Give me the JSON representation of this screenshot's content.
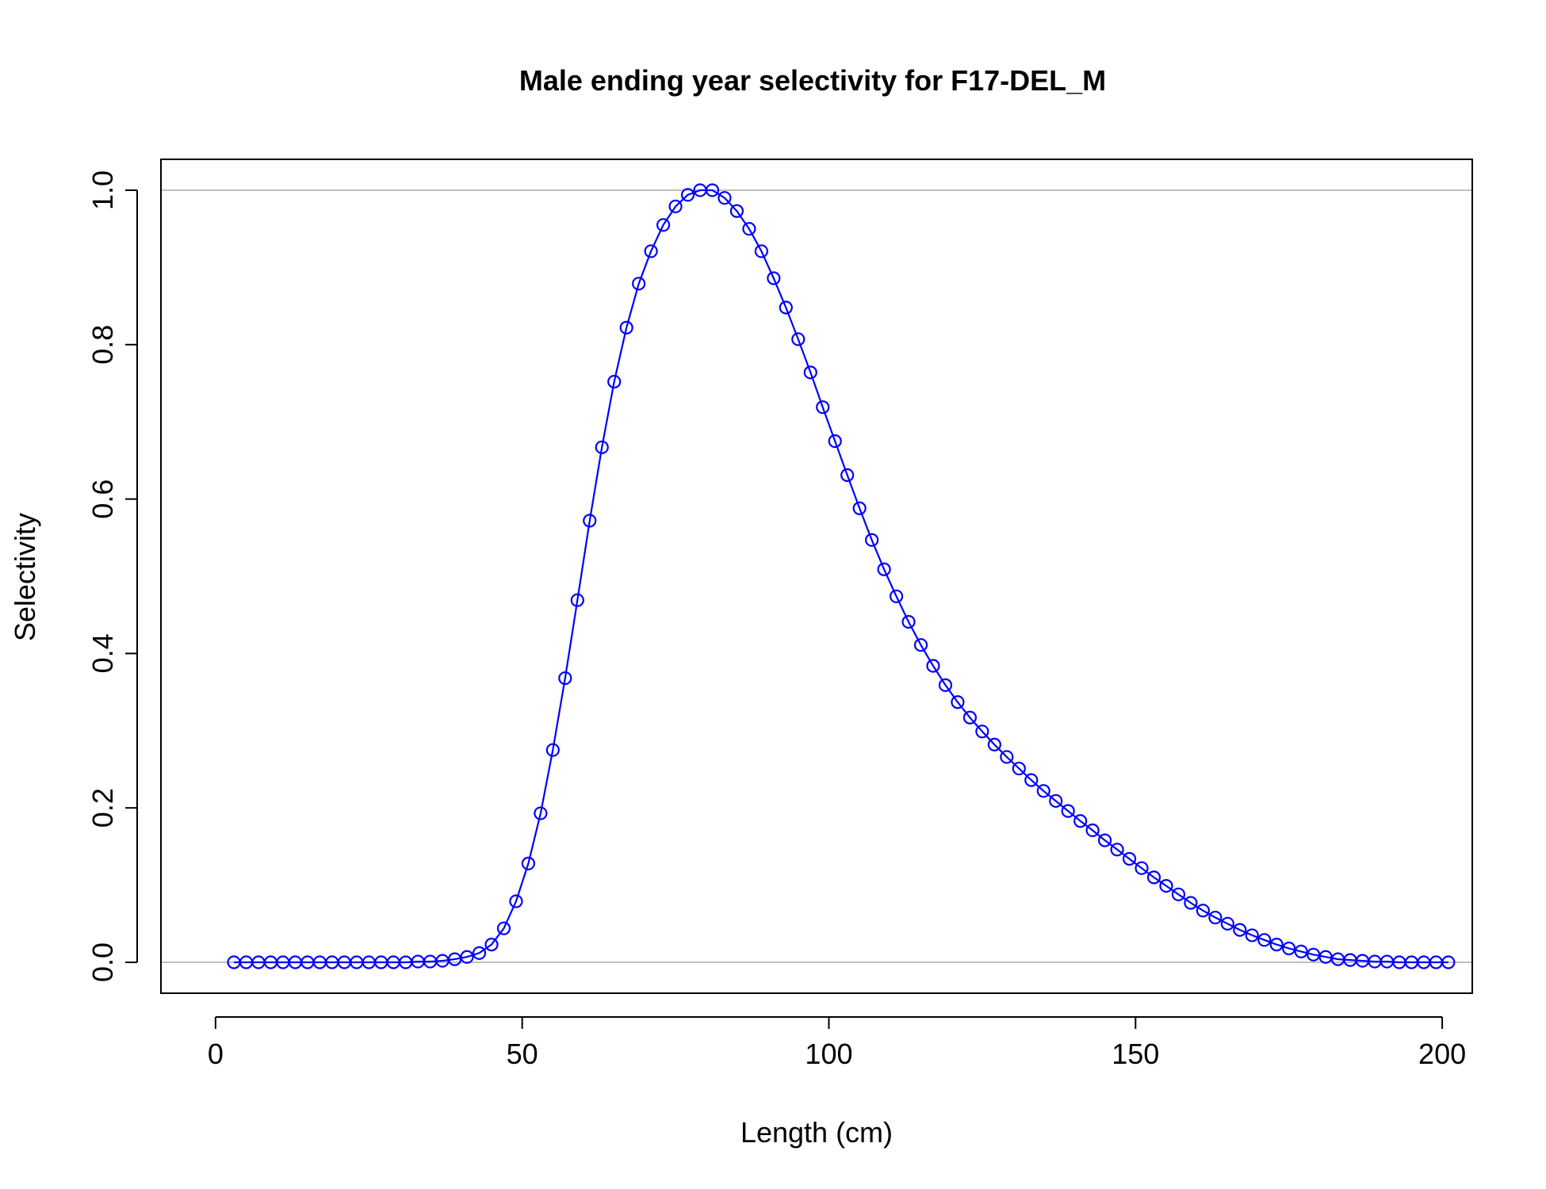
{
  "chart_data": {
    "type": "line",
    "title": "Male ending year selectivity for F17-DEL_M",
    "xlabel": "Length (cm)",
    "ylabel": "Selectivity",
    "xlim": [
      -8.9,
      204.9
    ],
    "ylim": [
      -0.04,
      1.04
    ],
    "x_ticks": [
      0,
      50,
      100,
      150,
      200
    ],
    "x_tick_labels": [
      "0",
      "50",
      "100",
      "150",
      "200"
    ],
    "y_ticks": [
      0.0,
      0.2,
      0.4,
      0.6,
      0.8,
      1.0
    ],
    "y_tick_labels": [
      "0.0",
      "0.2",
      "0.4",
      "0.6",
      "0.8",
      "1.0"
    ],
    "reference_lines_y": [
      0,
      1
    ],
    "reference_line_color": "#bebebe",
    "series_color": "#0000ff",
    "grid": false,
    "legend": "none",
    "series": [
      {
        "x": [
          3,
          5,
          7,
          9,
          11,
          13,
          15,
          17,
          19,
          21,
          23,
          25,
          27,
          29,
          31,
          33,
          35,
          37,
          39,
          41,
          43,
          45,
          47,
          49,
          51,
          53,
          55,
          57,
          59,
          61,
          63,
          65,
          67,
          69,
          71,
          73,
          75,
          77,
          79,
          81,
          83,
          85,
          87,
          89,
          91,
          93,
          95,
          97,
          99,
          101,
          103,
          105,
          107,
          109,
          111,
          113,
          115,
          117,
          119,
          121,
          123,
          125,
          127,
          129,
          131,
          133,
          135,
          137,
          139,
          141,
          143,
          145,
          147,
          149,
          151,
          153,
          155,
          157,
          159,
          161,
          163,
          165,
          167,
          169,
          171,
          173,
          175,
          177,
          179,
          181,
          183,
          185,
          187,
          189,
          191,
          193,
          195,
          197,
          199,
          201
        ],
        "y": [
          0,
          0,
          0,
          0,
          0,
          0,
          0,
          0,
          0,
          0,
          0,
          0,
          0,
          0,
          0,
          0.001,
          0.001,
          0.002,
          0.004,
          0.007,
          0.012,
          0.023,
          0.044,
          0.079,
          0.128,
          0.193,
          0.275,
          0.368,
          0.469,
          0.572,
          0.667,
          0.752,
          0.822,
          0.879,
          0.921,
          0.955,
          0.979,
          0.994,
          1.0,
          1.0,
          0.99,
          0.973,
          0.95,
          0.921,
          0.886,
          0.848,
          0.807,
          0.764,
          0.719,
          0.675,
          0.631,
          0.588,
          0.547,
          0.509,
          0.474,
          0.441,
          0.411,
          0.384,
          0.359,
          0.337,
          0.317,
          0.299,
          0.282,
          0.266,
          0.251,
          0.236,
          0.222,
          0.209,
          0.196,
          0.183,
          0.171,
          0.158,
          0.146,
          0.134,
          0.122,
          0.11,
          0.099,
          0.088,
          0.077,
          0.067,
          0.058,
          0.05,
          0.042,
          0.035,
          0.029,
          0.023,
          0.018,
          0.014,
          0.01,
          0.007,
          0.004,
          0.003,
          0.002,
          0.001,
          0.001,
          0,
          0,
          0,
          0,
          0
        ]
      }
    ]
  }
}
